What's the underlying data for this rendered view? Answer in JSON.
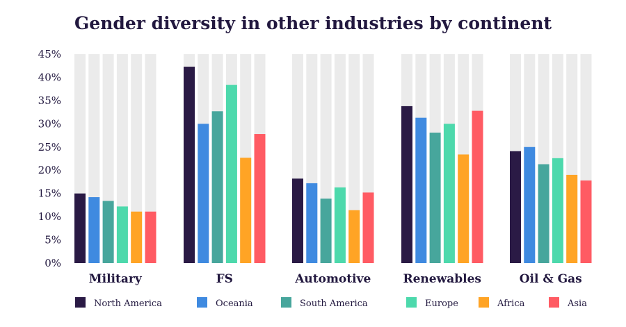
{
  "chart_data": {
    "type": "bar",
    "title": "Gender diversity in other industries by continent",
    "xlabel": "",
    "ylabel": "",
    "ylim": [
      0,
      45
    ],
    "yticks": [
      "0%",
      "5%",
      "10%",
      "15%",
      "20%",
      "25%",
      "30%",
      "35%",
      "40%",
      "45%"
    ],
    "categories": [
      "Military",
      "FS",
      "Automotive",
      "Renewables",
      "Oil & Gas"
    ],
    "series": [
      {
        "name": "North America",
        "color": "#2a1a45",
        "values": [
          15.0,
          42.3,
          18.2,
          33.8,
          24.1
        ]
      },
      {
        "name": "Oceania",
        "color": "#3f8ae0",
        "values": [
          14.2,
          30.0,
          17.2,
          31.3,
          25.0
        ]
      },
      {
        "name": "South America",
        "color": "#47a69c",
        "values": [
          13.4,
          32.7,
          13.9,
          28.1,
          21.3
        ]
      },
      {
        "name": "Europe",
        "color": "#4dd9ac",
        "values": [
          12.2,
          38.4,
          16.3,
          30.0,
          22.6
        ]
      },
      {
        "name": "Africa",
        "color": "#ffa425",
        "values": [
          11.1,
          22.7,
          11.4,
          23.4,
          19.0
        ]
      },
      {
        "name": "Asia",
        "color": "#ff5b63",
        "values": [
          11.1,
          27.8,
          15.2,
          32.8,
          17.8
        ]
      }
    ],
    "background_bar_color": "#ebebeb",
    "legend_position": "bottom"
  }
}
